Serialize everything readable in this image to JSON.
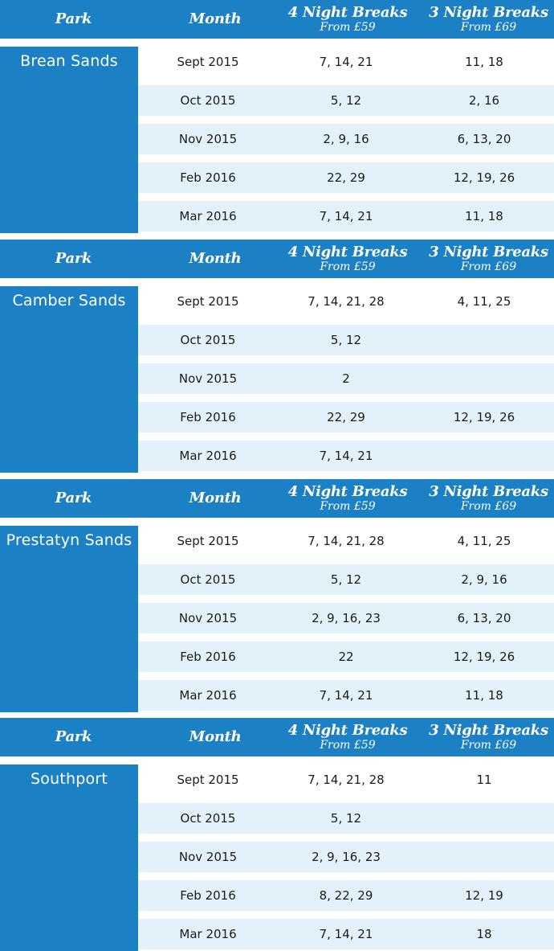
{
  "header": {
    "park_label": "Park",
    "month_label": "Month",
    "four_label": "4 Night Breaks",
    "four_sub": "From £59",
    "three_label": "3 Night Breaks",
    "three_sub": "From £69"
  },
  "parks": [
    {
      "name": "Brean Sands",
      "rows": [
        {
          "month": "Sept 2015",
          "four": "7, 14, 21",
          "three": "11, 18"
        },
        {
          "month": "Oct 2015",
          "four": "5, 12",
          "three": "2, 16"
        },
        {
          "month": "Nov 2015",
          "four": "2, 9, 16",
          "three": "6, 13, 20"
        },
        {
          "month": "Feb 2016",
          "four": "22, 29",
          "three": "12, 19, 26"
        },
        {
          "month": "Mar 2016",
          "four": "7, 14, 21",
          "three": "11, 18"
        }
      ]
    },
    {
      "name": "Camber Sands",
      "rows": [
        {
          "month": "Sept 2015",
          "four": "7, 14, 21, 28",
          "three": "4, 11, 25"
        },
        {
          "month": "Oct 2015",
          "four": "5, 12",
          "three": ""
        },
        {
          "month": "Nov 2015",
          "four": "2",
          "three": ""
        },
        {
          "month": "Feb 2016",
          "four": "22, 29",
          "three": "12, 19, 26"
        },
        {
          "month": "Mar 2016",
          "four": "7, 14, 21",
          "three": ""
        }
      ]
    },
    {
      "name": "Prestatyn Sands",
      "rows": [
        {
          "month": "Sept 2015",
          "four": "7, 14, 21, 28",
          "three": "4, 11, 25"
        },
        {
          "month": "Oct 2015",
          "four": "5, 12",
          "three": "2, 9, 16"
        },
        {
          "month": "Nov 2015",
          "four": "2, 9, 16, 23",
          "three": "6, 13, 20"
        },
        {
          "month": "Feb 2016",
          "four": "22",
          "three": "12, 19, 26"
        },
        {
          "month": "Mar 2016",
          "four": "7, 14, 21",
          "three": "11, 18"
        }
      ]
    },
    {
      "name": "Southport",
      "rows": [
        {
          "month": "Sept 2015",
          "four": "7, 14, 21, 28",
          "three": "11"
        },
        {
          "month": "Oct 2015",
          "four": "5, 12",
          "three": ""
        },
        {
          "month": "Nov 2015",
          "four": "2, 9, 16, 23",
          "three": ""
        },
        {
          "month": "Feb 2016",
          "four": "8, 22, 29",
          "three": "12, 19"
        },
        {
          "month": "Mar 2016",
          "four": "7, 14, 21",
          "three": "18"
        }
      ]
    }
  ],
  "colors": {
    "header_blue": "#1c80c5",
    "row_light": "#e3f1fb",
    "row_white": "#ffffff"
  }
}
